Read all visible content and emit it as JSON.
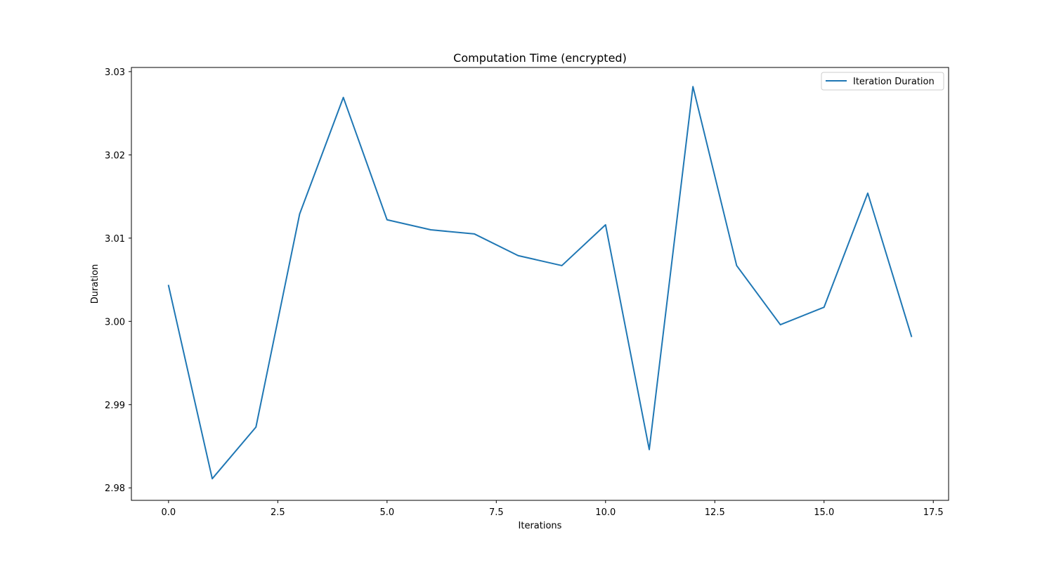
{
  "chart_data": {
    "type": "line",
    "title": "Computation Time (encrypted)",
    "xlabel": "Iterations",
    "ylabel": "Duration",
    "xlim": [
      -0.85,
      17.85
    ],
    "ylim": [
      2.9785,
      3.0305
    ],
    "xticks": [
      0.0,
      2.5,
      5.0,
      7.5,
      10.0,
      12.5,
      15.0,
      17.5
    ],
    "xtick_labels": [
      "0.0",
      "2.5",
      "5.0",
      "7.5",
      "10.0",
      "12.5",
      "15.0",
      "17.5"
    ],
    "yticks": [
      2.98,
      2.99,
      3.0,
      3.01,
      3.02,
      3.03
    ],
    "ytick_labels": [
      "2.98",
      "2.99",
      "3.00",
      "3.01",
      "3.02",
      "3.03"
    ],
    "grid": false,
    "legend": "upper right",
    "series": [
      {
        "name": "Iteration Duration",
        "color": "#1f77b4",
        "x": [
          0,
          1,
          2,
          3,
          4,
          5,
          6,
          7,
          8,
          9,
          10,
          11,
          12,
          13,
          14,
          15,
          16,
          17
        ],
        "y": [
          3.0043,
          2.9811,
          2.9873,
          3.0129,
          3.0269,
          3.0122,
          3.011,
          3.0105,
          3.0079,
          3.0067,
          3.0116,
          2.9846,
          3.0282,
          3.0067,
          2.9996,
          3.0017,
          3.0154,
          2.9982
        ]
      }
    ]
  }
}
